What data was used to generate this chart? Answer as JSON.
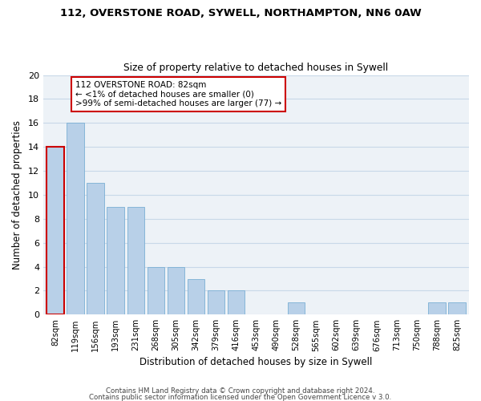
{
  "title1": "112, OVERSTONE ROAD, SYWELL, NORTHAMPTON, NN6 0AW",
  "title2": "Size of property relative to detached houses in Sywell",
  "xlabel": "Distribution of detached houses by size in Sywell",
  "ylabel": "Number of detached properties",
  "bar_labels": [
    "82sqm",
    "119sqm",
    "156sqm",
    "193sqm",
    "231sqm",
    "268sqm",
    "305sqm",
    "342sqm",
    "379sqm",
    "416sqm",
    "453sqm",
    "490sqm",
    "528sqm",
    "565sqm",
    "602sqm",
    "639sqm",
    "676sqm",
    "713sqm",
    "750sqm",
    "788sqm",
    "825sqm"
  ],
  "bar_values": [
    14,
    16,
    11,
    9,
    9,
    4,
    4,
    3,
    2,
    2,
    0,
    0,
    1,
    0,
    0,
    0,
    0,
    0,
    0,
    1,
    1
  ],
  "bar_color": "#b8d0e8",
  "annotation_text_line1": "112 OVERSTONE ROAD: 82sqm",
  "annotation_text_line2": "← <1% of detached houses are smaller (0)",
  "annotation_text_line3": ">99% of semi-detached houses are larger (77) →",
  "ylim": [
    0,
    20
  ],
  "yticks": [
    0,
    2,
    4,
    6,
    8,
    10,
    12,
    14,
    16,
    18,
    20
  ],
  "footer1": "Contains HM Land Registry data © Crown copyright and database right 2024.",
  "footer2": "Contains public sector information licensed under the Open Government Licence v 3.0.",
  "grid_color": "#c8d8e8",
  "background_color": "#edf2f7",
  "highlight_edge_color": "#cc0000",
  "bar_edge_color": "#7aafd4",
  "annotation_box_facecolor": "#ffffff",
  "annotation_box_edgecolor": "#cc0000"
}
